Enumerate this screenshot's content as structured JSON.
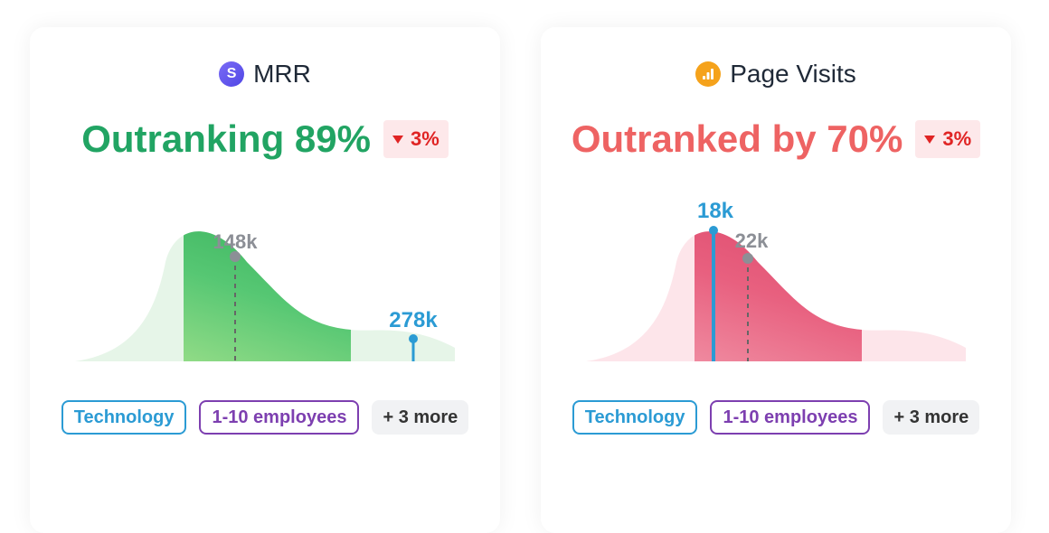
{
  "cards": [
    {
      "metric": "MRR",
      "logo_icon": "stripe-icon",
      "logo_letter": "S",
      "ranking": "Outranking 89%",
      "ranking_color": "#21a463",
      "change": "3%",
      "change_direction": "down",
      "median_label": "148k",
      "value_label": "278k",
      "tags": [
        "Technology",
        "1-10 employees",
        "+ 3 more"
      ]
    },
    {
      "metric": "Page Visits",
      "logo_icon": "google-analytics-icon",
      "ranking": "Outranked by 70%",
      "ranking_color": "#ee6363",
      "change": "3%",
      "change_direction": "down",
      "median_label": "22k",
      "value_label": "18k",
      "tags": [
        "Technology",
        "1-10 employees",
        "+ 3 more"
      ]
    }
  ],
  "colors": {
    "value_marker": "#2b9bd4",
    "median_marker": "#8c8f96",
    "positive": "#21a463",
    "negative": "#ee6363"
  }
}
